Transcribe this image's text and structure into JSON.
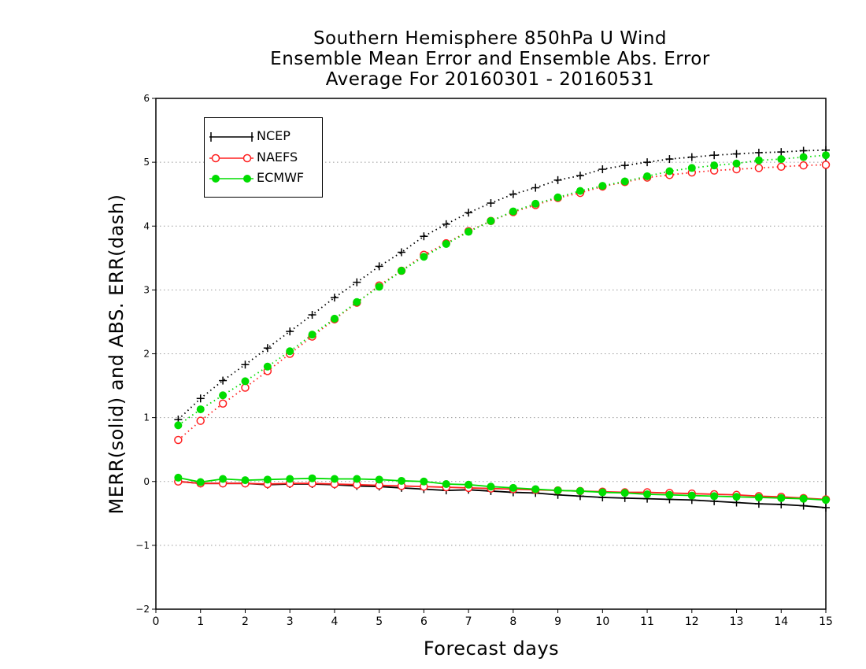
{
  "title_lines": [
    "Southern Hemisphere 850hPa U Wind",
    "Ensemble Mean Error and Ensemble Abs. Error",
    "Average For 20160301 - 20160531"
  ],
  "legend": {
    "items": [
      {
        "label": "NCEP",
        "color": "#000000",
        "marker": "plus"
      },
      {
        "label": "NAEFS",
        "color": "#ff2020",
        "marker": "open-circle"
      },
      {
        "label": "ECMWF",
        "color": "#00dd00",
        "marker": "filled-circle"
      }
    ]
  },
  "chart_data": {
    "type": "line",
    "title": "Southern Hemisphere 850hPa U Wind Ensemble Mean Error and Ensemble Abs. Error Average For 20160301 - 20160531",
    "xlabel": "Forecast days",
    "ylabel": "MERR(solid) and ABS. ERR(dash)",
    "xlim": [
      0,
      15
    ],
    "ylim": [
      -2,
      6
    ],
    "xticks": [
      "0",
      "1",
      "2",
      "3",
      "4",
      "5",
      "6",
      "7",
      "8",
      "9",
      "10",
      "11",
      "12",
      "13",
      "14",
      "15"
    ],
    "yticks": [
      "-2",
      "-1",
      "0",
      "1",
      "2",
      "3",
      "4",
      "5",
      "6"
    ],
    "grid": "horizontal dotted",
    "legend_position": "top-left",
    "x": [
      0.5,
      1,
      1.5,
      2,
      2.5,
      3,
      3.5,
      4,
      4.5,
      5,
      5.5,
      6,
      6.5,
      7,
      7.5,
      8,
      8.5,
      9,
      9.5,
      10,
      10.5,
      11,
      11.5,
      12,
      12.5,
      13,
      13.5,
      14,
      14.5,
      15
    ],
    "series": [
      {
        "name": "NCEP",
        "style": "solid",
        "color": "#000000",
        "marker": "plus",
        "values": [
          0.0,
          -0.03,
          -0.03,
          -0.03,
          -0.05,
          -0.04,
          -0.04,
          -0.05,
          -0.07,
          -0.08,
          -0.1,
          -0.12,
          -0.14,
          -0.13,
          -0.15,
          -0.17,
          -0.18,
          -0.21,
          -0.23,
          -0.25,
          -0.26,
          -0.27,
          -0.28,
          -0.29,
          -0.31,
          -0.33,
          -0.35,
          -0.36,
          -0.38,
          -0.41
        ]
      },
      {
        "name": "NAEFS",
        "style": "solid",
        "color": "#ff2020",
        "marker": "open-circle",
        "values": [
          0.0,
          -0.03,
          -0.03,
          -0.03,
          -0.04,
          -0.03,
          -0.03,
          -0.04,
          -0.05,
          -0.06,
          -0.07,
          -0.08,
          -0.09,
          -0.1,
          -0.11,
          -0.12,
          -0.13,
          -0.14,
          -0.15,
          -0.16,
          -0.17,
          -0.17,
          -0.18,
          -0.19,
          -0.2,
          -0.21,
          -0.23,
          -0.24,
          -0.26,
          -0.28
        ]
      },
      {
        "name": "ECMWF",
        "style": "solid",
        "color": "#00dd00",
        "marker": "filled-circle",
        "values": [
          0.06,
          -0.01,
          0.04,
          0.02,
          0.03,
          0.04,
          0.05,
          0.04,
          0.04,
          0.03,
          0.01,
          0.0,
          -0.04,
          -0.05,
          -0.08,
          -0.1,
          -0.12,
          -0.14,
          -0.15,
          -0.17,
          -0.18,
          -0.2,
          -0.21,
          -0.22,
          -0.23,
          -0.24,
          -0.25,
          -0.26,
          -0.27,
          -0.29
        ]
      },
      {
        "name": "NCEP",
        "style": "dotted",
        "color": "#000000",
        "marker": "plus",
        "values": [
          0.97,
          1.3,
          1.58,
          1.83,
          2.09,
          2.35,
          2.61,
          2.88,
          3.12,
          3.37,
          3.59,
          3.84,
          4.03,
          4.21,
          4.36,
          4.5,
          4.6,
          4.72,
          4.79,
          4.89,
          4.95,
          5.0,
          5.05,
          5.08,
          5.11,
          5.13,
          5.15,
          5.16,
          5.18,
          5.19
        ]
      },
      {
        "name": "NAEFS",
        "style": "dotted",
        "color": "#ff2020",
        "marker": "open-circle",
        "values": [
          0.65,
          0.95,
          1.22,
          1.47,
          1.73,
          2.0,
          2.27,
          2.54,
          2.8,
          3.07,
          3.3,
          3.55,
          3.73,
          3.92,
          4.08,
          4.22,
          4.33,
          4.44,
          4.52,
          4.62,
          4.69,
          4.76,
          4.8,
          4.84,
          4.87,
          4.89,
          4.91,
          4.93,
          4.95,
          4.96
        ]
      },
      {
        "name": "ECMWF",
        "style": "dotted",
        "color": "#00dd00",
        "marker": "filled-circle",
        "values": [
          0.88,
          1.13,
          1.35,
          1.57,
          1.8,
          2.04,
          2.3,
          2.55,
          2.81,
          3.05,
          3.3,
          3.52,
          3.72,
          3.91,
          4.08,
          4.23,
          4.35,
          4.45,
          4.55,
          4.63,
          4.7,
          4.78,
          4.86,
          4.91,
          4.95,
          4.98,
          5.03,
          5.05,
          5.08,
          5.11
        ]
      }
    ]
  }
}
